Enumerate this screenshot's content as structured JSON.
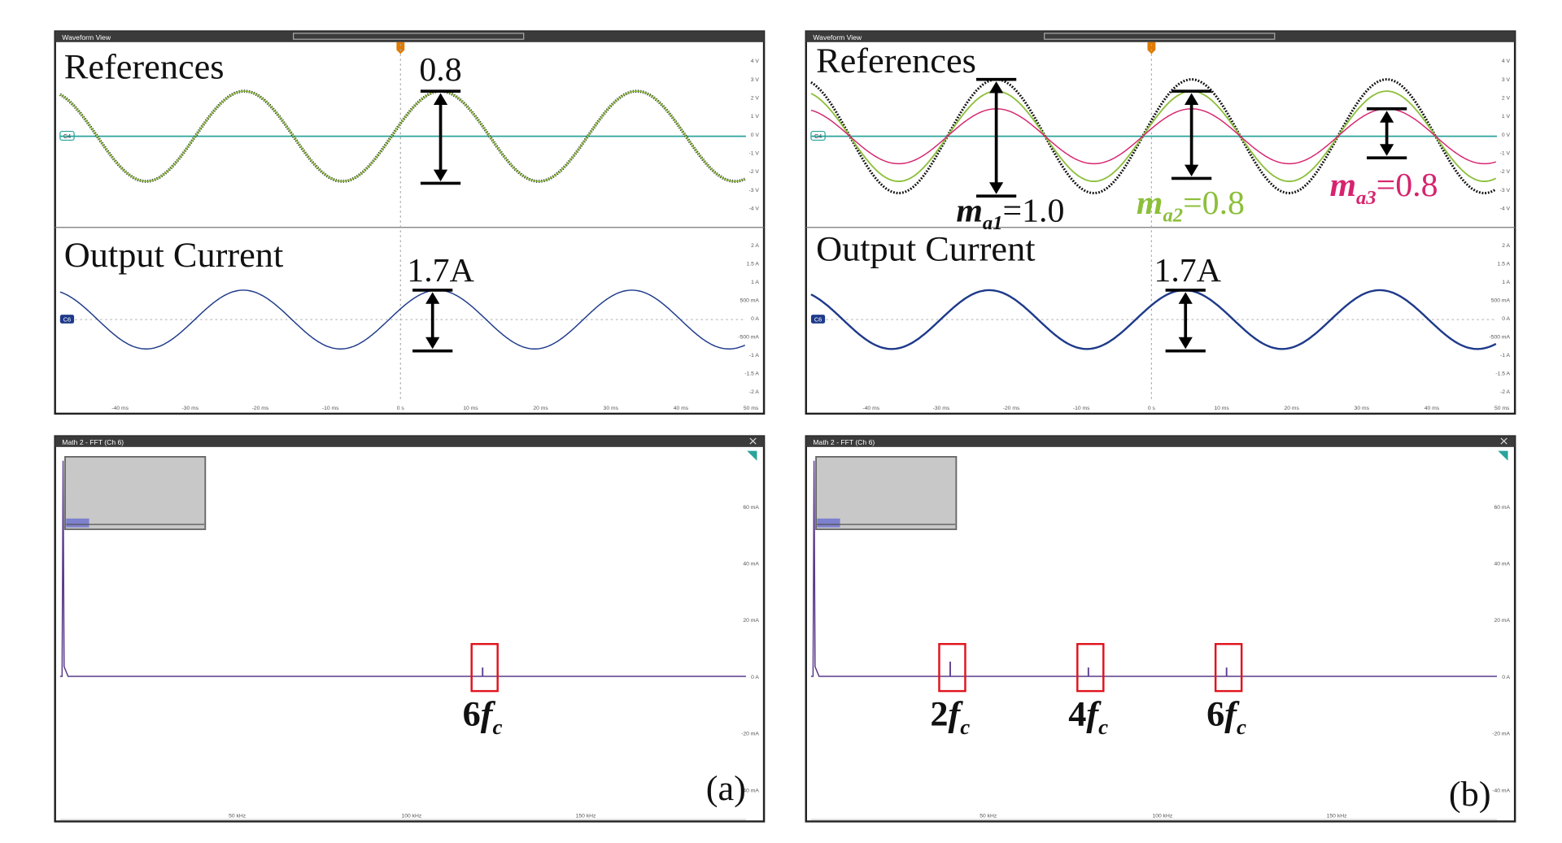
{
  "scope_panels": [
    {
      "header": "Waveform View",
      "upper_label": "References",
      "lower_label": "Output Current",
      "upper_channel": "C4",
      "lower_channel": "C6",
      "upper_annotation": "0.8",
      "lower_annotation": "1.7A",
      "upper_y_ticks": [
        "4 V",
        "3 V",
        "2 V",
        "1 V",
        "0 V",
        "-1 V",
        "-2 V",
        "-3 V",
        "-4 V"
      ],
      "lower_y_ticks": [
        "2 A",
        "1.5 A",
        "1 A",
        "500 mA",
        "0 A",
        "-500 mA",
        "-1 A",
        "-1.5 A",
        "-2 A"
      ],
      "x_ticks": [
        "-40 ms",
        "-30 ms",
        "-20 ms",
        "-10 ms",
        "0 s",
        "10 ms",
        "20 ms",
        "30 ms",
        "40 ms",
        "50 ms"
      ]
    },
    {
      "header": "Waveform View",
      "upper_label": "References",
      "lower_label": "Output Current",
      "upper_channel": "C4",
      "lower_channel": "C6",
      "modulation_labels": [
        {
          "symbol": "m",
          "subscript": "a1",
          "value": "=1.0"
        },
        {
          "symbol": "m",
          "subscript": "a2",
          "value": "=0.8"
        },
        {
          "symbol": "m",
          "subscript": "a3",
          "value": "=0.8"
        }
      ],
      "lower_annotation": "1.7A",
      "upper_y_ticks": [
        "4 V",
        "3 V",
        "2 V",
        "1 V",
        "0 V",
        "-1 V",
        "-2 V",
        "-3 V",
        "-4 V"
      ],
      "lower_y_ticks": [
        "2 A",
        "1.5 A",
        "1 A",
        "500 mA",
        "0 A",
        "-500 mA",
        "-1 A",
        "-1.5 A",
        "-2 A"
      ],
      "x_ticks": [
        "-40 ms",
        "-30 ms",
        "-20 ms",
        "-10 ms",
        "0 s",
        "10 ms",
        "20 ms",
        "30 ms",
        "40 ms",
        "50 ms"
      ]
    }
  ],
  "fft_panels": [
    {
      "header": "Math 2 - FFT (Ch 6)",
      "y_ticks": [
        "60 mA",
        "40 mA",
        "20 mA",
        "0 A",
        "-20 mA",
        "-40 mA"
      ],
      "x_ticks": [
        "50 kHz",
        "100 kHz",
        "150 kHz"
      ],
      "harmonics": [
        {
          "number": "6",
          "symbol": "f",
          "subscript": "c"
        }
      ],
      "caption": "(a)"
    },
    {
      "header": "Math 2 - FFT (Ch 6)",
      "y_ticks": [
        "60 mA",
        "40 mA",
        "20 mA",
        "0 A",
        "-20 mA",
        "-40 mA"
      ],
      "x_ticks": [
        "50 kHz",
        "100 kHz",
        "150 kHz"
      ],
      "harmonics": [
        {
          "number": "2",
          "symbol": "f",
          "subscript": "c"
        },
        {
          "number": "4",
          "symbol": "f",
          "subscript": "c"
        },
        {
          "number": "6",
          "symbol": "f",
          "subscript": "c"
        }
      ],
      "caption": "(b)"
    }
  ]
}
